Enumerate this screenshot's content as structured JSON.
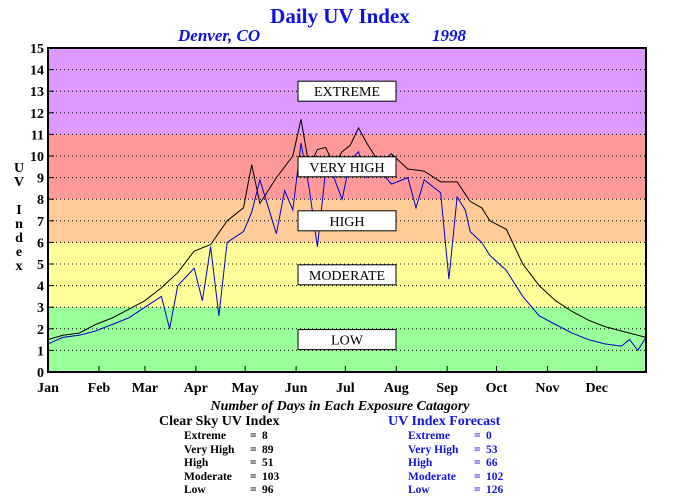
{
  "chart_data": {
    "type": "line",
    "title": "Daily UV Index",
    "subtitle_location": "Denver, CO",
    "subtitle_year": "1998",
    "ylabel": "UV Index",
    "ylim": [
      0,
      15
    ],
    "yticks": [
      "0",
      "1",
      "2",
      "3",
      "4",
      "5",
      "6",
      "7",
      "8",
      "9",
      "10",
      "11",
      "12",
      "13",
      "14",
      "15"
    ],
    "xticks": [
      "Jan",
      "Feb",
      "Mar",
      "Apr",
      "May",
      "Jun",
      "Jul",
      "Aug",
      "Sep",
      "Oct",
      "Nov",
      "Dec"
    ],
    "xlim_days": [
      1,
      365
    ],
    "grid": "horizontal dotted",
    "bands": [
      {
        "label": "LOW",
        "from": 0,
        "to": 3,
        "color": "#99ff99"
      },
      {
        "label": "MODERATE",
        "from": 3,
        "to": 6,
        "color": "#ffff99"
      },
      {
        "label": "HIGH",
        "from": 6,
        "to": 8,
        "color": "#ffcc99"
      },
      {
        "label": "VERY HIGH",
        "from": 8,
        "to": 11,
        "color": "#ff9999"
      },
      {
        "label": "EXTREME",
        "from": 11,
        "to": 15,
        "color": "#dd99ff"
      }
    ],
    "series": [
      {
        "name": "Clear Sky UV Index",
        "color": "#000000",
        "x": [
          1,
          10,
          20,
          30,
          40,
          50,
          60,
          70,
          80,
          90,
          100,
          110,
          120,
          125,
          130,
          140,
          150,
          155,
          160,
          165,
          170,
          175,
          180,
          185,
          190,
          195,
          200,
          205,
          210,
          220,
          230,
          240,
          250,
          258,
          265,
          270,
          280,
          290,
          300,
          310,
          320,
          330,
          340,
          350,
          355,
          365
        ],
        "y": [
          1.5,
          1.7,
          1.8,
          2.2,
          2.5,
          2.9,
          3.3,
          3.9,
          4.6,
          5.6,
          5.9,
          7.0,
          7.6,
          9.6,
          7.8,
          9.0,
          10.0,
          11.7,
          9.5,
          10.3,
          10.4,
          9.6,
          10.2,
          10.5,
          11.3,
          10.6,
          10.0,
          9.8,
          10.1,
          9.4,
          9.3,
          8.8,
          8.8,
          7.9,
          7.6,
          7.0,
          6.6,
          5.0,
          4.0,
          3.3,
          2.8,
          2.4,
          2.1,
          1.9,
          1.8,
          1.6
        ]
      },
      {
        "name": "UV Index Forecast",
        "color": "#0000cc",
        "x": [
          1,
          10,
          20,
          30,
          40,
          50,
          60,
          70,
          75,
          80,
          90,
          95,
          100,
          105,
          110,
          120,
          125,
          130,
          140,
          145,
          150,
          155,
          160,
          165,
          170,
          175,
          180,
          185,
          190,
          195,
          200,
          210,
          220,
          225,
          230,
          240,
          245,
          250,
          255,
          258,
          265,
          270,
          280,
          290,
          300,
          310,
          320,
          330,
          340,
          350,
          355,
          360,
          365
        ],
        "y": [
          1.3,
          1.6,
          1.7,
          1.9,
          2.2,
          2.5,
          3.0,
          3.5,
          2.0,
          4.0,
          4.8,
          3.3,
          5.8,
          2.6,
          6.0,
          6.5,
          7.4,
          8.9,
          6.4,
          8.4,
          7.5,
          10.6,
          8.5,
          5.8,
          9.3,
          9.0,
          8.0,
          9.8,
          10.2,
          9.0,
          9.6,
          8.7,
          9.0,
          7.6,
          8.9,
          8.3,
          4.3,
          8.1,
          7.5,
          6.5,
          6.0,
          5.4,
          4.7,
          3.5,
          2.6,
          2.2,
          1.8,
          1.5,
          1.3,
          1.2,
          1.5,
          1.0,
          1.6
        ]
      }
    ]
  },
  "stats": {
    "heading": "Number of Days in Each Exposure Catagory",
    "clear_sky": {
      "title": "Clear Sky UV Index",
      "rows": [
        {
          "label": "Extreme",
          "eq": "=",
          "value": "8"
        },
        {
          "label": "Very High",
          "eq": "=",
          "value": "89"
        },
        {
          "label": "High",
          "eq": "=",
          "value": "51"
        },
        {
          "label": "Moderate",
          "eq": "=",
          "value": "103"
        },
        {
          "label": "Low",
          "eq": "=",
          "value": "96"
        }
      ]
    },
    "forecast": {
      "title": "UV Index Forecast",
      "rows": [
        {
          "label": "Extreme",
          "eq": "=",
          "value": "0"
        },
        {
          "label": "Very High",
          "eq": "=",
          "value": "53"
        },
        {
          "label": "High",
          "eq": "=",
          "value": "66"
        },
        {
          "label": "Moderate",
          "eq": "=",
          "value": "102"
        },
        {
          "label": "Low",
          "eq": "=",
          "value": "126"
        }
      ]
    }
  }
}
